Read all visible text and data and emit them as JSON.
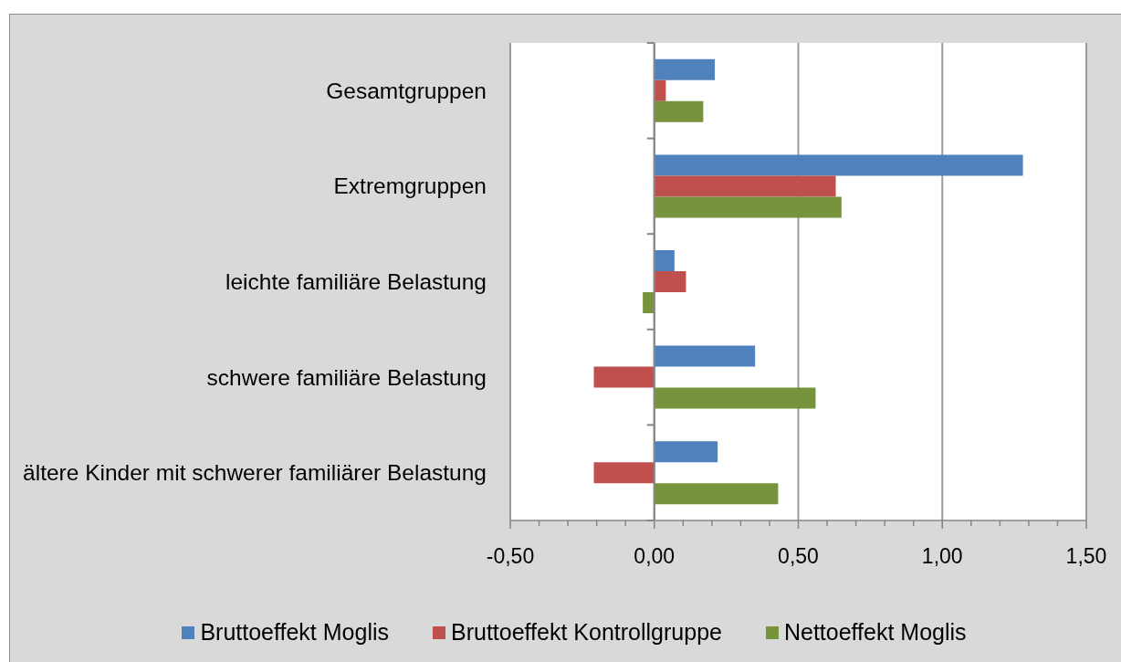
{
  "chart_data": {
    "type": "bar",
    "orientation": "horizontal",
    "categories": [
      "Gesamtgruppen",
      "Extremgruppen",
      "leichte familiäre Belastung",
      "schwere familiäre Belastung",
      "ältere Kinder mit schwerer familiärer Belastung"
    ],
    "series": [
      {
        "name": "Bruttoeffekt Moglis",
        "color": "#4f81bd",
        "values": [
          0.21,
          1.28,
          0.07,
          0.35,
          0.22
        ]
      },
      {
        "name": "Bruttoeffekt Kontrollgruppe",
        "color": "#c0504d",
        "values": [
          0.04,
          0.63,
          0.11,
          -0.21,
          -0.21
        ]
      },
      {
        "name": "Nettoeffekt Moglis",
        "color": "#77933c",
        "values": [
          0.17,
          0.65,
          -0.04,
          0.56,
          0.43
        ]
      }
    ],
    "xlim": [
      -0.5,
      1.5
    ],
    "xticks": [
      {
        "value": -0.5,
        "label": "-0,50"
      },
      {
        "value": -0.4,
        "label": null
      },
      {
        "value": -0.3,
        "label": null
      },
      {
        "value": -0.2,
        "label": null
      },
      {
        "value": -0.1,
        "label": null
      },
      {
        "value": 0,
        "label": "0,00"
      },
      {
        "value": 0.1,
        "label": null
      },
      {
        "value": 0.2,
        "label": null
      },
      {
        "value": 0.3,
        "label": null
      },
      {
        "value": 0.4,
        "label": null
      },
      {
        "value": 0.5,
        "label": "0,50"
      },
      {
        "value": 0.6,
        "label": null
      },
      {
        "value": 0.7,
        "label": null
      },
      {
        "value": 0.8,
        "label": null
      },
      {
        "value": 0.9,
        "label": null
      },
      {
        "value": 1,
        "label": "1,00"
      },
      {
        "value": 1.1,
        "label": null
      },
      {
        "value": 1.2,
        "label": null
      },
      {
        "value": 1.3,
        "label": null
      },
      {
        "value": 1.4,
        "label": null
      },
      {
        "value": 1.5,
        "label": "1,50"
      }
    ],
    "grid": "x",
    "legend": "bottom"
  }
}
